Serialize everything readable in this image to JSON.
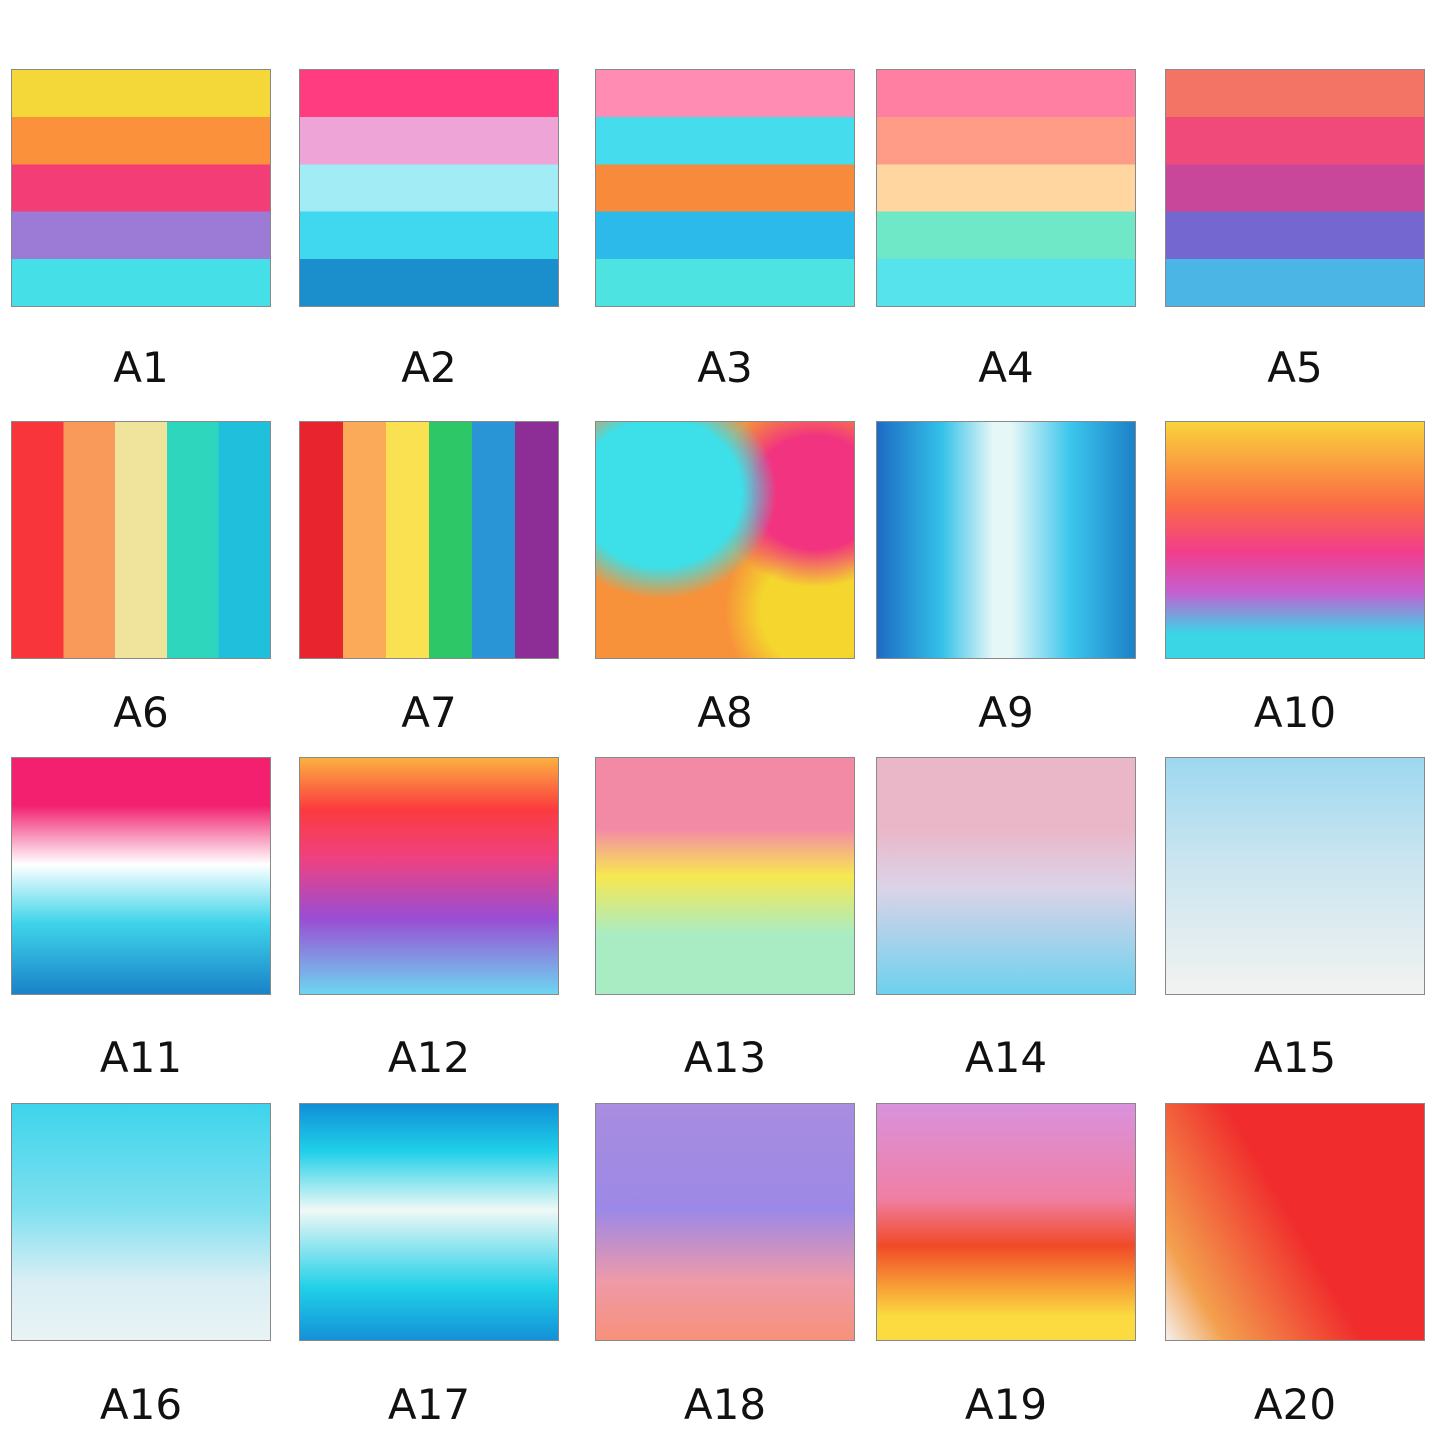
{
  "labels": [
    "A1",
    "A2",
    "A3",
    "A4",
    "A5",
    "A6",
    "A7",
    "A8",
    "A9",
    "A10",
    "A11",
    "A12",
    "A13",
    "A14",
    "A15",
    "A16",
    "A17",
    "A18",
    "A19",
    "A20"
  ]
}
